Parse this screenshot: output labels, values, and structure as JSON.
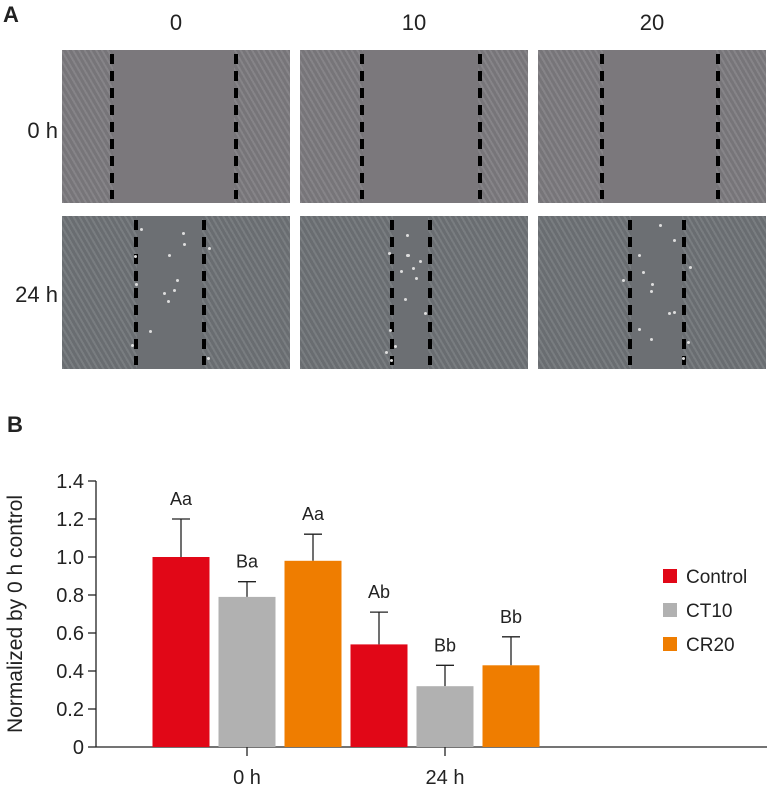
{
  "panel_a": {
    "label": "A",
    "columns": [
      "0",
      "10",
      "20"
    ],
    "rows": [
      "0 h",
      "24 h"
    ],
    "images": [
      {
        "row": "0 h",
        "col": "0",
        "description": "microscopy scratch wound image"
      },
      {
        "row": "0 h",
        "col": "10",
        "description": "microscopy scratch wound image"
      },
      {
        "row": "0 h",
        "col": "20",
        "description": "microscopy scratch wound image"
      },
      {
        "row": "24 h",
        "col": "0",
        "description": "microscopy scratch wound image"
      },
      {
        "row": "24 h",
        "col": "10",
        "description": "microscopy scratch wound image"
      },
      {
        "row": "24 h",
        "col": "20",
        "description": "microscopy scratch wound image"
      }
    ]
  },
  "panel_b": {
    "label": "B"
  },
  "chart_data": {
    "type": "bar",
    "title": "",
    "xlabel": "",
    "ylabel": "Normalized by 0 h control",
    "categories": [
      "0 h",
      "24 h"
    ],
    "ylim": [
      0,
      1.4
    ],
    "yticks": [
      "0",
      "0.2",
      "0.4",
      "0.6",
      "0.8",
      "1.0",
      "1.2",
      "1.4"
    ],
    "grid": false,
    "legend_position": "right",
    "series": [
      {
        "name": "Control",
        "color": "#e10717",
        "values": [
          1.0,
          0.54
        ],
        "error_upper": [
          1.2,
          0.71
        ],
        "labels": [
          "Aa",
          "Ab"
        ]
      },
      {
        "name": "CT10",
        "color": "#b1b1b1",
        "values": [
          0.79,
          0.32
        ],
        "error_upper": [
          0.87,
          0.43
        ],
        "labels": [
          "Ba",
          "Bb"
        ]
      },
      {
        "name": "CR20",
        "color": "#ef7d00",
        "values": [
          0.98,
          0.43
        ],
        "error_upper": [
          1.12,
          0.58
        ],
        "labels": [
          "Aa",
          "Bb"
        ]
      }
    ]
  }
}
